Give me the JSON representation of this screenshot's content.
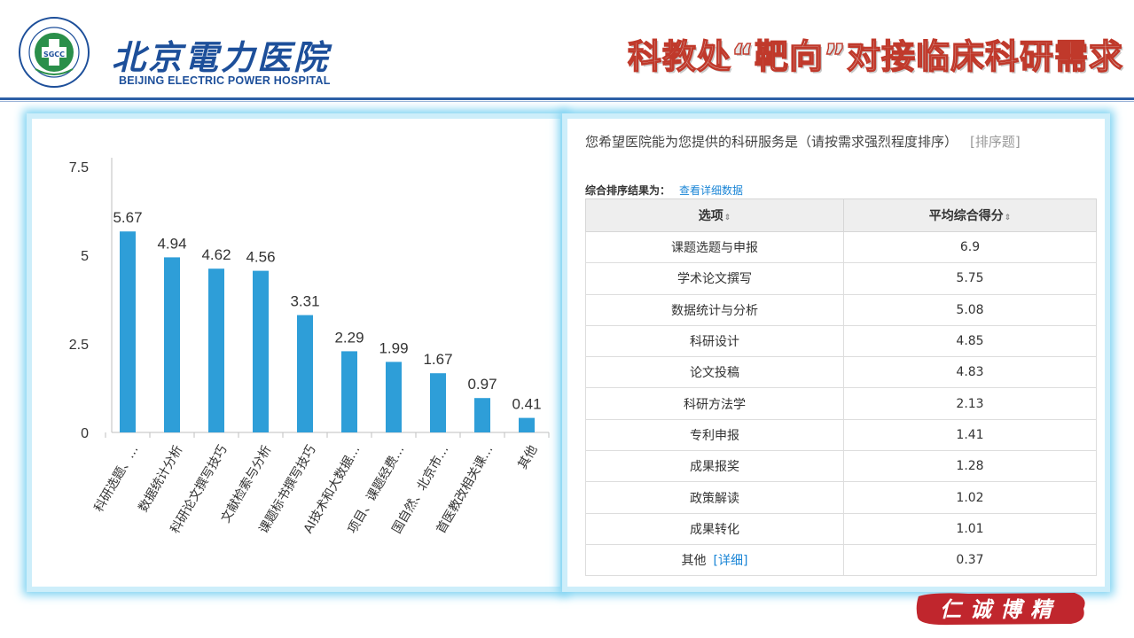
{
  "header": {
    "logo_cn": "北京電力医院",
    "logo_en": "BEIJING ELECTRIC POWER HOSPITAL",
    "emblem_text": "SGCC",
    "slide_title": "科教处“靶向”对接临床科研需求"
  },
  "chart_data": {
    "type": "bar",
    "categories": [
      "科研选题、…",
      "数据统计分析",
      "科研论文撰写技巧",
      "文献检索与分析",
      "课题标书撰写技巧",
      "AI技术和大数据…",
      "项目、课题经费…",
      "国自然、北京市…",
      "首医教改相关课…",
      "其他"
    ],
    "values": [
      5.67,
      4.94,
      4.62,
      4.56,
      3.31,
      2.29,
      1.99,
      1.67,
      0.97,
      0.41
    ],
    "yticks": [
      "0",
      "2.5",
      "5",
      "7.5"
    ],
    "ylim": [
      0,
      7.5
    ],
    "bar_color": "#2e9ed8",
    "grid": false
  },
  "survey": {
    "question": "您希望医院能为您提供的科研服务是（请按需求强烈程度排序）",
    "question_tag": "[排序题]",
    "result_label": "综合排序结果为：",
    "detail_link": "查看详细数据",
    "columns": [
      "选项",
      "平均综合得分"
    ],
    "sort_icon": "⇕",
    "rows": [
      {
        "option": "课题选题与申报",
        "score": "6.9"
      },
      {
        "option": "学术论文撰写",
        "score": "5.75"
      },
      {
        "option": "数据统计与分析",
        "score": "5.08"
      },
      {
        "option": "科研设计",
        "score": "4.85"
      },
      {
        "option": "论文投稿",
        "score": "4.83"
      },
      {
        "option": "科研方法学",
        "score": "2.13"
      },
      {
        "option": "专利申报",
        "score": "1.41"
      },
      {
        "option": "成果报奖",
        "score": "1.28"
      },
      {
        "option": "政策解读",
        "score": "1.02"
      },
      {
        "option": "成果转化",
        "score": "1.01"
      },
      {
        "option": "其他",
        "score": "0.37",
        "link": "[详细]"
      }
    ]
  },
  "stamp": {
    "text": "仁诚博精",
    "color": "#c0262d"
  }
}
